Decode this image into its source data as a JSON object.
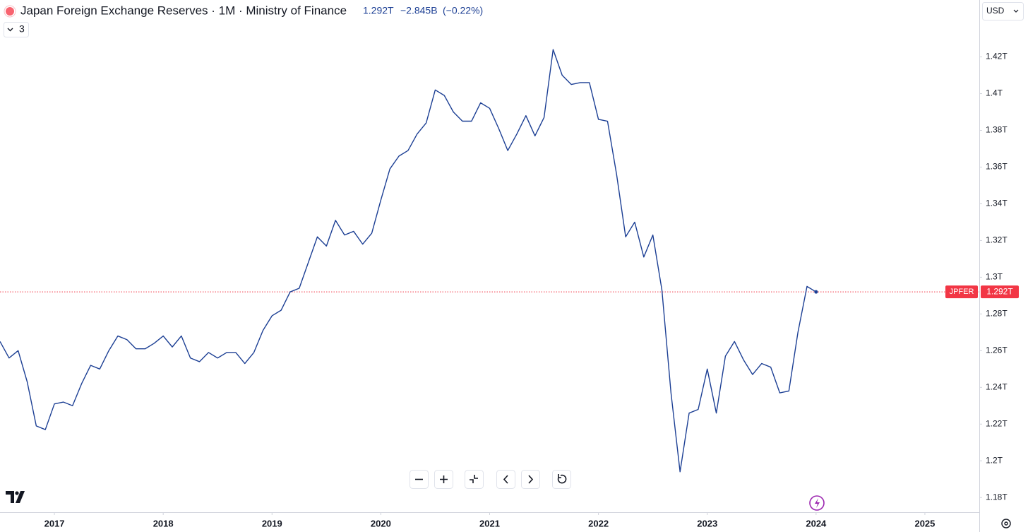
{
  "chart_data": {
    "type": "line",
    "title": "Japan Foreign Exchange Reserves · 1M · Ministry of Finance",
    "last_price": "1.292T",
    "change": "−2.845B",
    "change_percent": "(−0.22%)",
    "currency": "USD",
    "indicators_count": "3",
    "color": "#1c3f94",
    "grid": false,
    "x": [
      "2016-07",
      "2016-08",
      "2016-09",
      "2016-10",
      "2016-11",
      "2016-12",
      "2017-01",
      "2017-02",
      "2017-03",
      "2017-04",
      "2017-05",
      "2017-06",
      "2017-07",
      "2017-08",
      "2017-09",
      "2017-10",
      "2017-11",
      "2017-12",
      "2018-01",
      "2018-02",
      "2018-03",
      "2018-04",
      "2018-05",
      "2018-06",
      "2018-07",
      "2018-08",
      "2018-09",
      "2018-10",
      "2018-11",
      "2018-12",
      "2019-01",
      "2019-02",
      "2019-03",
      "2019-04",
      "2019-05",
      "2019-06",
      "2019-07",
      "2019-08",
      "2019-09",
      "2019-10",
      "2019-11",
      "2019-12",
      "2020-01",
      "2020-02",
      "2020-03",
      "2020-04",
      "2020-05",
      "2020-06",
      "2020-07",
      "2020-08",
      "2020-09",
      "2020-10",
      "2020-11",
      "2020-12",
      "2021-01",
      "2021-02",
      "2021-03",
      "2021-04",
      "2021-05",
      "2021-06",
      "2021-07",
      "2021-08",
      "2021-09",
      "2021-10",
      "2021-11",
      "2021-12",
      "2022-01",
      "2022-02",
      "2022-03",
      "2022-04",
      "2022-05",
      "2022-06",
      "2022-07",
      "2022-08",
      "2022-09",
      "2022-10",
      "2022-11",
      "2022-12",
      "2023-01",
      "2023-02",
      "2023-03",
      "2023-04",
      "2023-05",
      "2023-06",
      "2023-07",
      "2023-08",
      "2023-09",
      "2023-10",
      "2023-11",
      "2023-12",
      "2024-01"
    ],
    "values": [
      1.265,
      1.256,
      1.26,
      1.243,
      1.219,
      1.217,
      1.231,
      1.232,
      1.23,
      1.242,
      1.252,
      1.25,
      1.26,
      1.268,
      1.266,
      1.261,
      1.261,
      1.264,
      1.268,
      1.262,
      1.268,
      1.256,
      1.254,
      1.259,
      1.256,
      1.259,
      1.259,
      1.253,
      1.259,
      1.271,
      1.279,
      1.282,
      1.292,
      1.294,
      1.308,
      1.322,
      1.317,
      1.331,
      1.323,
      1.325,
      1.318,
      1.324,
      1.342,
      1.359,
      1.366,
      1.369,
      1.378,
      1.384,
      1.402,
      1.399,
      1.39,
      1.385,
      1.385,
      1.395,
      1.392,
      1.381,
      1.369,
      1.378,
      1.388,
      1.377,
      1.387,
      1.424,
      1.41,
      1.405,
      1.406,
      1.406,
      1.386,
      1.385,
      1.356,
      1.322,
      1.33,
      1.311,
      1.323,
      1.293,
      1.237,
      1.194,
      1.226,
      1.228,
      1.25,
      1.226,
      1.257,
      1.265,
      1.255,
      1.247,
      1.253,
      1.251,
      1.237,
      1.238,
      1.27,
      1.295,
      1.292
    ],
    "xlim": [
      "2016-07",
      "2025-07"
    ],
    "xticks": [
      {
        "value": "2017-01",
        "label": "2017"
      },
      {
        "value": "2018-01",
        "label": "2018"
      },
      {
        "value": "2019-01",
        "label": "2019"
      },
      {
        "value": "2020-01",
        "label": "2020"
      },
      {
        "value": "2021-01",
        "label": "2021"
      },
      {
        "value": "2022-01",
        "label": "2022"
      },
      {
        "value": "2023-01",
        "label": "2023"
      },
      {
        "value": "2024-01",
        "label": "2024"
      },
      {
        "value": "2025-01",
        "label": "2025"
      }
    ],
    "ylim": [
      1.172,
      1.451
    ],
    "yticks": [
      {
        "value": 1.18,
        "label": "1.18T"
      },
      {
        "value": 1.2,
        "label": "1.2T"
      },
      {
        "value": 1.22,
        "label": "1.22T"
      },
      {
        "value": 1.24,
        "label": "1.24T"
      },
      {
        "value": 1.26,
        "label": "1.26T"
      },
      {
        "value": 1.28,
        "label": "1.28T"
      },
      {
        "value": 1.3,
        "label": "1.3T"
      },
      {
        "value": 1.32,
        "label": "1.32T"
      },
      {
        "value": 1.34,
        "label": "1.34T"
      },
      {
        "value": 1.36,
        "label": "1.36T"
      },
      {
        "value": 1.38,
        "label": "1.38T"
      },
      {
        "value": 1.4,
        "label": "1.4T"
      },
      {
        "value": 1.42,
        "label": "1.42T"
      }
    ],
    "price_label": {
      "symbol": "JPFER",
      "value": 1.292,
      "label": "1.292T",
      "color": "#f23645"
    }
  }
}
